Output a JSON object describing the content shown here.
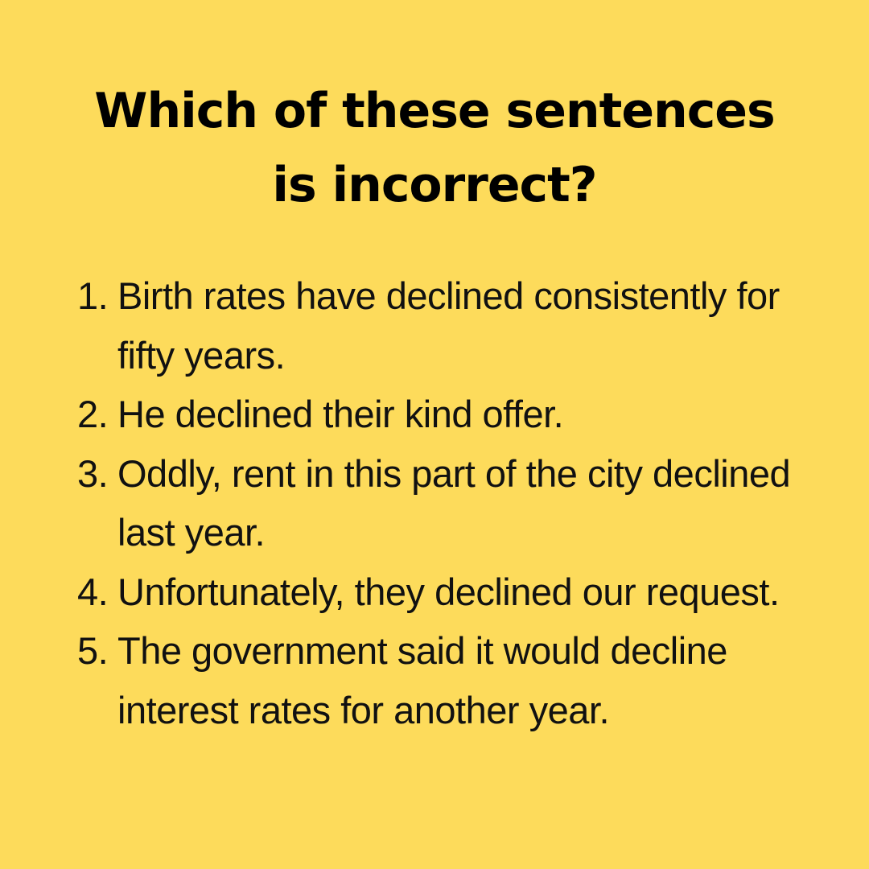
{
  "background_color": "#FDDB5B",
  "text_color": "#111111",
  "title": {
    "line1": "Which of these sentences",
    "line2": "is incorrect?"
  },
  "sentences": [
    {
      "number": "1.",
      "text": "Birth rates have declined consistently for fifty years."
    },
    {
      "number": "2.",
      "text": "He declined their kind offer."
    },
    {
      "number": "3.",
      "text": "Oddly, rent in this part of the city declined last year."
    },
    {
      "number": "4.",
      "text": "Unfortunately, they declined our request."
    },
    {
      "number": "5.",
      "text": "The government said it would decline interest rates for another year."
    }
  ]
}
